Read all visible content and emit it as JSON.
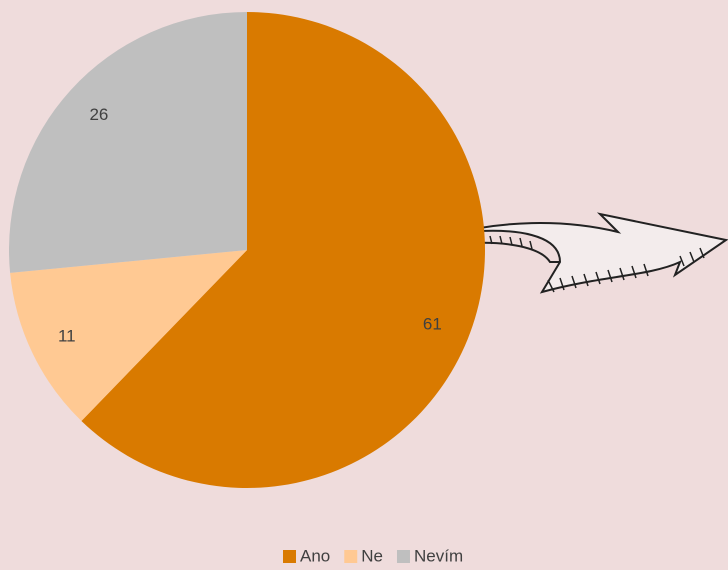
{
  "chart_data": {
    "type": "pie",
    "categories": [
      "Ano",
      "Ne",
      "Nevím"
    ],
    "values": [
      61,
      11,
      26
    ],
    "colors": [
      "#d97a00",
      "#ffc993",
      "#bfbfbf"
    ]
  }
}
